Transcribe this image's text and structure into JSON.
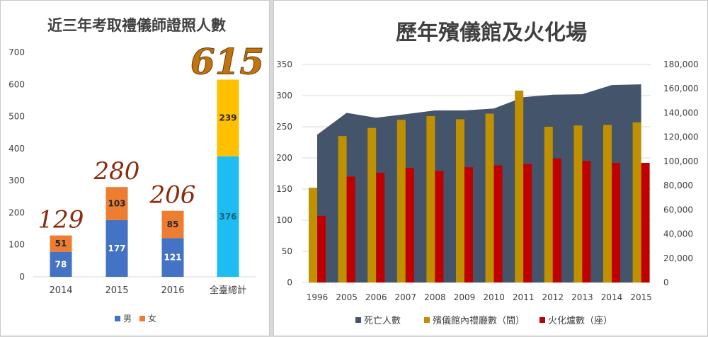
{
  "charts": [
    {
      "id": "left",
      "chart_data": {
        "type": "bar",
        "stacked": true,
        "title": "近三年考取禮儀師證照人數",
        "categories": [
          "2014",
          "2015",
          "2016",
          "全臺總計"
        ],
        "series": [
          {
            "name": "男",
            "values": [
              78,
              177,
              121,
              376
            ]
          },
          {
            "name": "女",
            "values": [
              51,
              103,
              85,
              239
            ]
          }
        ],
        "totals": [
          "129",
          "280",
          "206",
          "615"
        ],
        "ylim": [
          0,
          700
        ],
        "yticks": [
          0,
          100,
          200,
          300,
          400,
          500,
          600,
          700
        ],
        "legend": "bottom",
        "grid": false
      },
      "colors": {
        "male": "#4472c4",
        "female": "#ed7d31",
        "male_total": "#1ebdf1",
        "female_total": "#ffc000",
        "total_label": "#8b2a0c",
        "total_label_big": "#c0740e"
      }
    },
    {
      "id": "right",
      "chart_data": {
        "type": "bar",
        "title": "歷年殯儀館及火化場",
        "categories": [
          "1996",
          "2005",
          "2006",
          "2007",
          "2008",
          "2009",
          "2010",
          "2011",
          "2012",
          "2013",
          "2014",
          "2015"
        ],
        "series": [
          {
            "name": "死亡人數",
            "type": "area",
            "axis": "right",
            "values": [
              122000,
              140000,
              136000,
              139000,
              142000,
              142000,
              143600,
              153000,
              155000,
              155400,
              163000,
              163600
            ]
          },
          {
            "name": "殯儀館內禮廳數（間）",
            "type": "bar",
            "axis": "left",
            "values": [
              152,
              235,
              248,
              261,
              267,
              262,
              271,
              308,
              250,
              252,
              253,
              257
            ]
          },
          {
            "name": "火化爐數（座）",
            "type": "bar",
            "axis": "left",
            "values": [
              107,
              170,
              176,
              184,
              179,
              185,
              188,
              190,
              199,
              195,
              192,
              192
            ]
          }
        ],
        "ylim_left": [
          0,
          350
        ],
        "yticks_left": [
          "0",
          "50",
          "100",
          "150",
          "200",
          "250",
          "300",
          "350"
        ],
        "ylim_right": [
          0,
          180000
        ],
        "yticks_right": [
          "0",
          "20,000",
          "40,000",
          "60,000",
          "80,000",
          "100,000",
          "120,000",
          "140,000",
          "160,000",
          "180,000"
        ],
        "legend": "bottom",
        "grid": true
      },
      "colors": {
        "area": "#44546a",
        "halls": "#bf9000",
        "furnaces": "#c00000",
        "grid": "#d9d9d9"
      }
    }
  ]
}
